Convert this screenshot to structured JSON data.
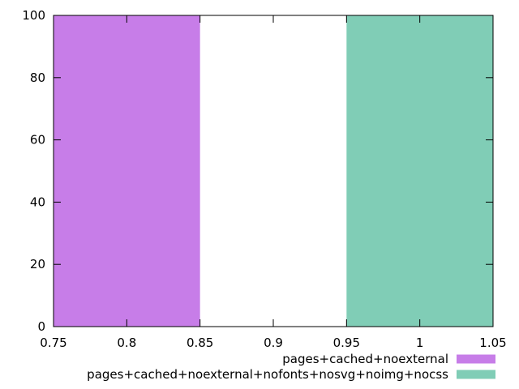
{
  "chart_data": {
    "type": "bar",
    "x_domain": [
      0.75,
      1.05
    ],
    "ylim": [
      0,
      100
    ],
    "x_ticks": [
      {
        "value": 0.75,
        "label": "0.75"
      },
      {
        "value": 0.8,
        "label": "0.8"
      },
      {
        "value": 0.85,
        "label": "0.85"
      },
      {
        "value": 0.9,
        "label": "0.9"
      },
      {
        "value": 0.95,
        "label": "0.95"
      },
      {
        "value": 1.0,
        "label": "1"
      },
      {
        "value": 1.05,
        "label": "1.05"
      }
    ],
    "y_ticks": [
      {
        "value": 0,
        "label": "0"
      },
      {
        "value": 20,
        "label": "20"
      },
      {
        "value": 40,
        "label": "40"
      },
      {
        "value": 60,
        "label": "60"
      },
      {
        "value": 80,
        "label": "80"
      },
      {
        "value": 100,
        "label": "100"
      }
    ],
    "series": [
      {
        "name": "pages+cached+noexternal",
        "color": "#c77de8",
        "bars": [
          {
            "x_start": 0.75,
            "x_end": 0.85,
            "value": 100
          }
        ]
      },
      {
        "name": "pages+cached+noexternal+nofonts+nosvg+noimg+nocss",
        "color": "#80cdb6",
        "bars": [
          {
            "x_start": 0.95,
            "x_end": 1.05,
            "value": 100
          }
        ]
      }
    ],
    "grid": false,
    "legend_position": "below plot, right-aligned",
    "title": "",
    "xlabel": "",
    "ylabel": ""
  }
}
